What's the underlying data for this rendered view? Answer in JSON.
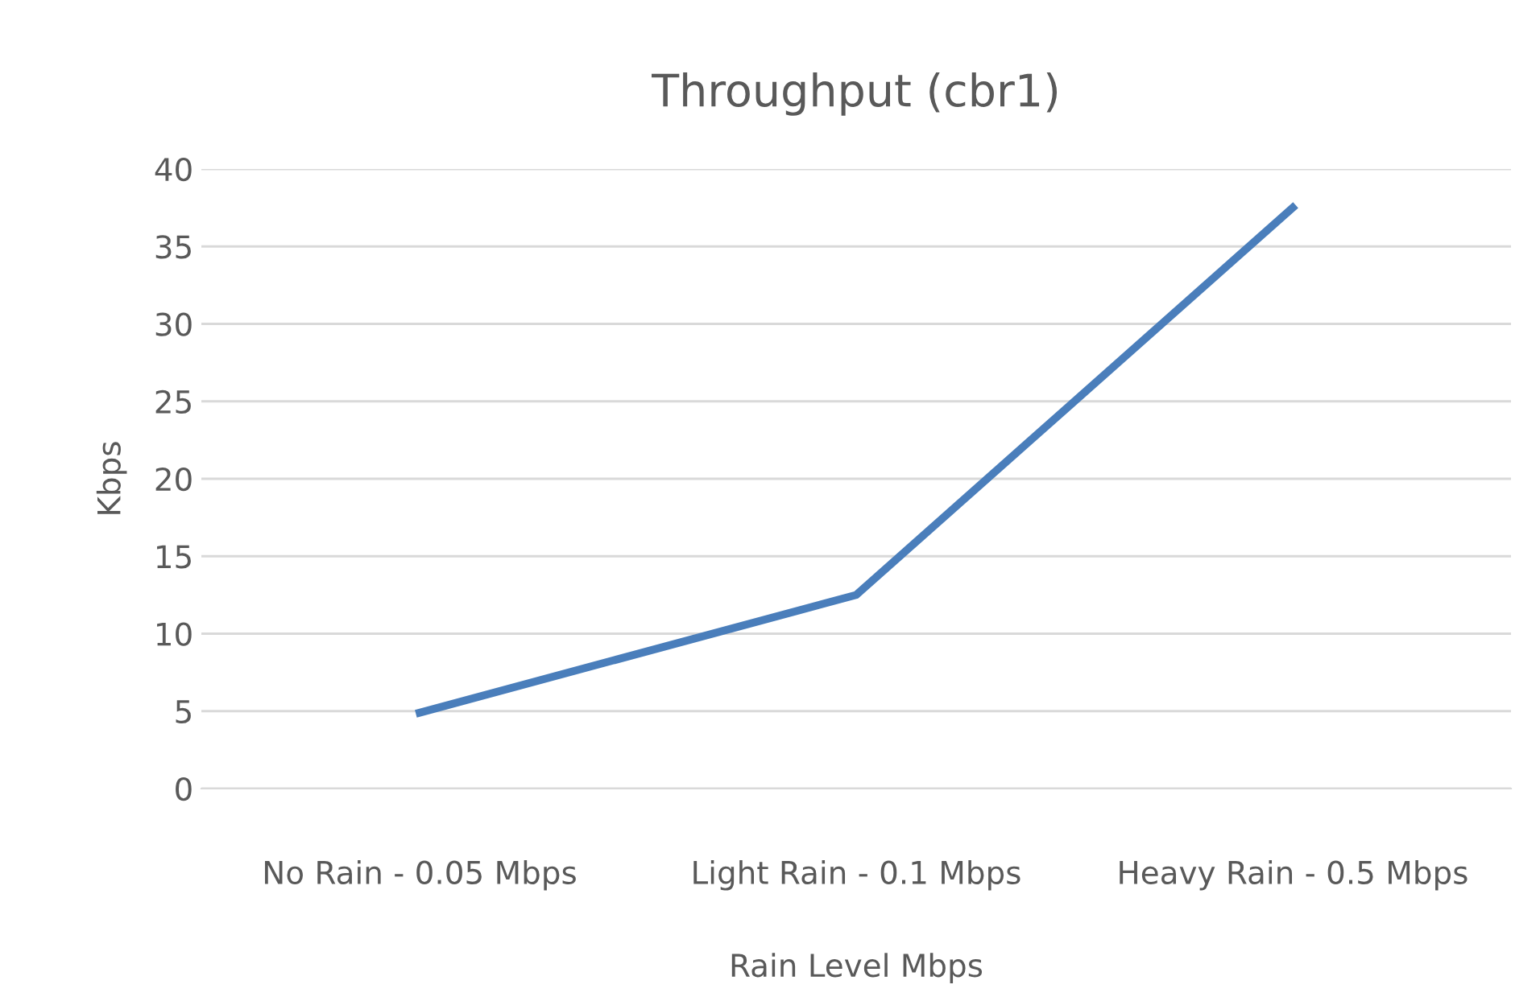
{
  "chart_data": {
    "type": "line",
    "title": "Throughput (cbr1)",
    "xlabel": "Rain Level Mbps",
    "ylabel": "Kbps",
    "categories": [
      "No Rain - 0.05 Mbps",
      "Light Rain - 0.1 Mbps",
      "Heavy Rain - 0.5 Mbps"
    ],
    "series": [
      {
        "color": "#4a7ebb",
        "values": [
          4.9,
          12.5,
          37.5
        ]
      }
    ],
    "ylim": [
      0,
      40
    ],
    "yticks": [
      0,
      5,
      10,
      15,
      20,
      25,
      30,
      35,
      40
    ],
    "grid": "y",
    "marker": "none",
    "line_style": "solid"
  }
}
